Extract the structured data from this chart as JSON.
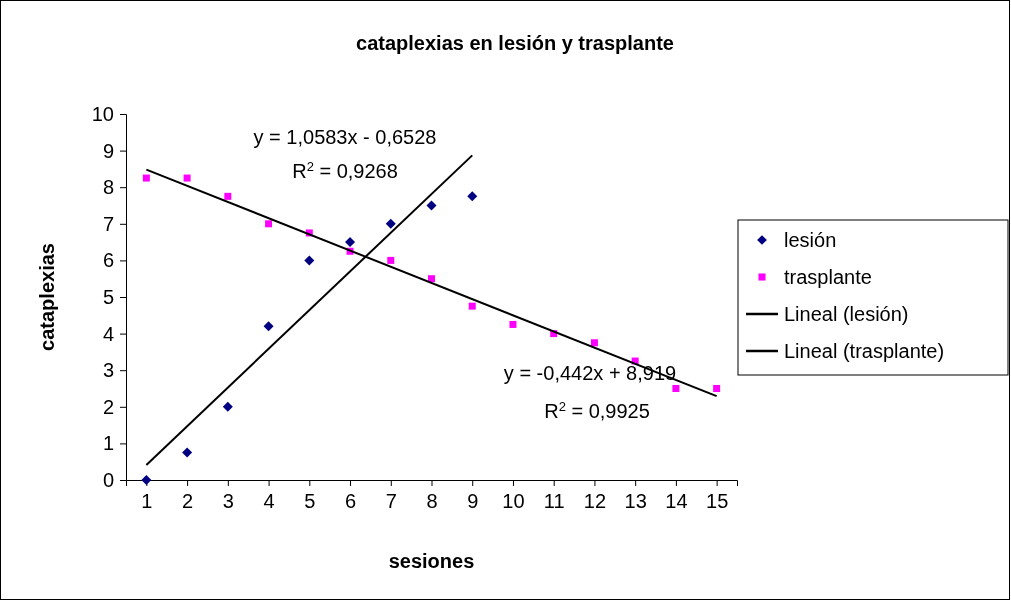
{
  "chart_data": {
    "type": "scatter",
    "title": "cataplexias en lesión y trasplante",
    "xlabel": "sesiones",
    "ylabel": "cataplexias",
    "x": [
      1,
      2,
      3,
      4,
      5,
      6,
      7,
      8,
      9,
      10,
      11,
      12,
      13,
      14,
      15
    ],
    "xlim": [
      0.5,
      15.5
    ],
    "xticks": [
      1,
      2,
      3,
      4,
      5,
      6,
      7,
      8,
      9,
      10,
      11,
      12,
      13,
      14,
      15
    ],
    "ylim": [
      0,
      10
    ],
    "yticks": [
      0,
      1,
      2,
      3,
      4,
      5,
      6,
      7,
      8,
      9,
      10
    ],
    "grid": false,
    "legend": "right",
    "series": [
      {
        "name": "lesión",
        "marker": "diamond",
        "color": "#000080",
        "x": [
          1,
          2,
          3,
          4,
          5,
          6,
          7,
          8,
          9
        ],
        "values": [
          0,
          0.75,
          2,
          4.2,
          6,
          6.5,
          7,
          7.5,
          7.75
        ]
      },
      {
        "name": "trasplante",
        "marker": "square",
        "color": "#ff00ff",
        "values": [
          8.25,
          8.25,
          7.75,
          7,
          6.75,
          6.25,
          6,
          5.5,
          4.75,
          4.25,
          4,
          3.75,
          3.25,
          2.5,
          2.5
        ]
      },
      {
        "name": "Lineal (lesión)",
        "type": "line",
        "marker": "none",
        "line_style": "solid",
        "color": "#000000",
        "x": [
          1,
          9
        ],
        "values": [
          0.41,
          8.87
        ]
      },
      {
        "name": "Lineal (trasplante)",
        "type": "line",
        "marker": "none",
        "line_style": "solid",
        "color": "#000000",
        "x": [
          1,
          15
        ],
        "values": [
          8.48,
          2.29
        ]
      }
    ],
    "annotations": [
      "y = 1,0583x - 0,6528",
      "R$^{2}$ = 0,9268",
      "y = -0,442x + 8,919",
      "R$^{2}$ = 0,9925"
    ]
  }
}
